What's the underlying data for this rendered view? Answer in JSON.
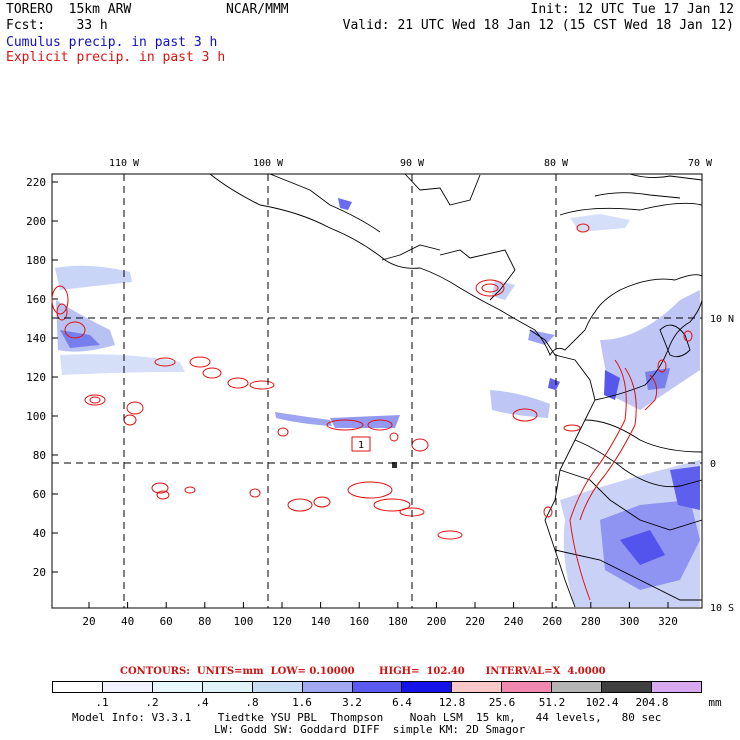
{
  "header": {
    "model": "TORERO  15km ARW",
    "org": "NCAR/MMM",
    "init": "Init: 12 UTC Tue 17 Jan 12",
    "fcst": "Fcst:    33 h",
    "valid": "Valid: 21 UTC Wed 18 Jan 12 (15 CST Wed 18 Jan 12)",
    "field1": "Cumulus precip. in past 3 h",
    "field2": "Explicit precip. in past 3 h"
  },
  "colors": {
    "cumulus_label": "#1010c0",
    "explicit_label": "#e01010",
    "contour": "#e01010"
  },
  "map": {
    "top_lon_labels": [
      "110 W",
      "100 W",
      "90 W",
      "80 W",
      "70 W"
    ],
    "right_lat_labels": [
      "10 N",
      "0",
      "10 S"
    ],
    "left_ticks": [
      "220",
      "200",
      "180",
      "160",
      "140",
      "120",
      "100",
      "80",
      "60",
      "40",
      "20"
    ],
    "bottom_ticks": [
      "20",
      "40",
      "60",
      "80",
      "100",
      "120",
      "140",
      "160",
      "180",
      "200",
      "220",
      "240",
      "260",
      "280",
      "300",
      "320"
    ],
    "contour_box_label": "1"
  },
  "legend": {
    "contours": "CONTOURS:  UNITS=mm  LOW= 0.10000       HIGH=  102.40      INTERVAL=X  4.0000",
    "values": [
      ".1",
      ".2",
      ".4",
      ".8",
      "1.6",
      "3.2",
      "6.4",
      "12.8",
      "25.6",
      "51.2",
      "102.4",
      "204.8"
    ],
    "unit": "mm",
    "colors": [
      "#ffffff",
      "#f2f2ff",
      "#e8f8ff",
      "#dff3f8",
      "#c8dcf4",
      "#a0a8f0",
      "#5a5af0",
      "#1414e8",
      "#f8c8c8",
      "#f088b0",
      "#b4b4b4",
      "#404040",
      "#d8a8f0"
    ]
  },
  "footer": {
    "line1": "Model Info: V3.3.1    Tiedtke YSU PBL  Thompson    Noah LSM  15 km,   44 levels,   80 sec",
    "line2": "LW: Godd SW: Goddard DIFF  simple KM: 2D Smagor"
  }
}
